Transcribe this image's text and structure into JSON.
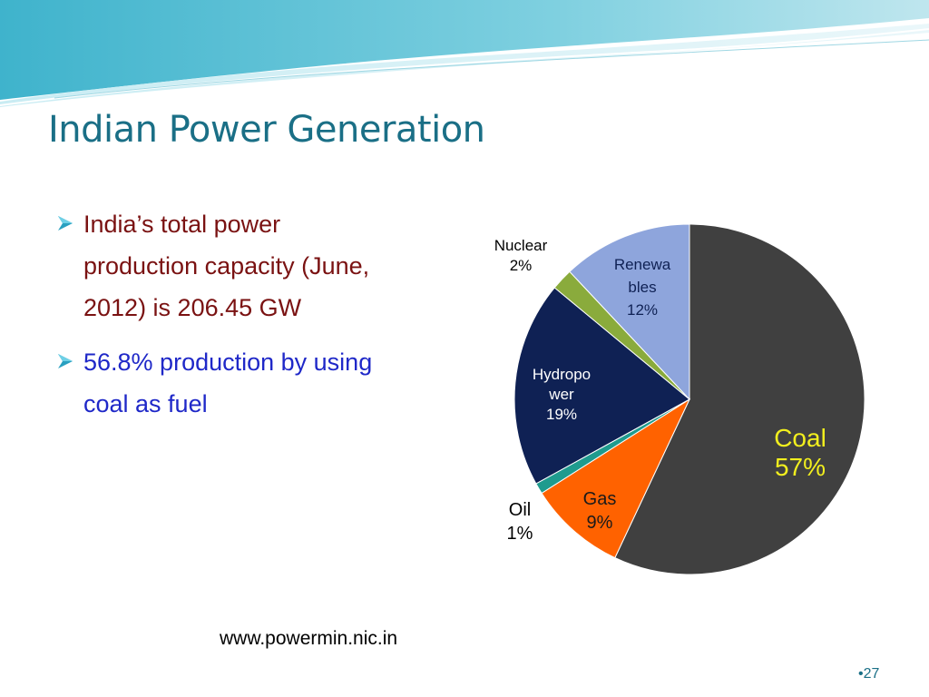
{
  "slide": {
    "title": "Indian Power Generation",
    "bullets": [
      {
        "text": "India’s total power production capacity (June, 2012) is 206.45 GW",
        "color": "#7a1212"
      },
      {
        "text": "56.8% production by using coal as fuel",
        "color": "#1f28c8"
      }
    ],
    "source": "www.powermin.nic.in",
    "page_number": "•27"
  },
  "theme": {
    "title_color": "#1a6f86",
    "wave_colors": [
      "#5bc4d6",
      "#a9dde8",
      "#ffffff"
    ]
  },
  "chart_data": {
    "type": "pie",
    "title": "",
    "slices": [
      {
        "name": "Coal",
        "value": 57,
        "label": [
          "Coal",
          "57%"
        ],
        "color": "#404040",
        "label_color": "#f2ef1e",
        "label_inside": true
      },
      {
        "name": "Gas",
        "value": 9,
        "label": [
          "Gas",
          "9%"
        ],
        "color": "#ff6200",
        "label_color": "#1a1a1a",
        "label_inside": true
      },
      {
        "name": "Oil",
        "value": 1,
        "label": [
          "Oil",
          "1%"
        ],
        "color": "#1f9b8e",
        "label_color": "#000000",
        "label_inside": false
      },
      {
        "name": "Hydropower",
        "value": 19,
        "label": [
          "Hydropo",
          "wer",
          "19%"
        ],
        "color": "#0f2154",
        "label_color": "#ffffff",
        "label_inside": true
      },
      {
        "name": "Nuclear",
        "value": 2,
        "label": [
          "Nuclear",
          "2%"
        ],
        "color": "#8aab3c",
        "label_color": "#000000",
        "label_inside": false
      },
      {
        "name": "Renewables",
        "value": 12,
        "label": [
          "Renewa",
          "bles",
          "12%"
        ],
        "color": "#8ea5dc",
        "label_color": "#0f2154",
        "label_inside": true
      }
    ],
    "start_angle_deg": 0,
    "direction": "clockwise"
  }
}
